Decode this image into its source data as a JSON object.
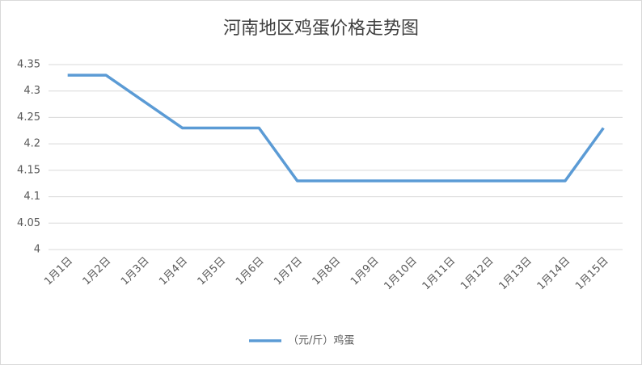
{
  "chart_data": {
    "type": "line",
    "title": "河南地区鸡蛋价格走势图",
    "categories": [
      "1月1日",
      "1月2日",
      "1月3日",
      "1月4日",
      "1月5日",
      "1月6日",
      "1月7日",
      "1月8日",
      "1月9日",
      "1月10日",
      "1月11日",
      "1月12日",
      "1月13日",
      "1月14日",
      "1月15日"
    ],
    "series": [
      {
        "name": "（元/斤）鸡蛋",
        "color": "#5b9bd5",
        "values": [
          4.33,
          4.33,
          4.28,
          4.23,
          4.23,
          4.23,
          4.13,
          4.13,
          4.13,
          4.13,
          4.13,
          4.13,
          4.13,
          4.13,
          4.23
        ]
      }
    ],
    "ylim": [
      4,
      4.35
    ],
    "yticks": [
      4,
      4.05,
      4.1,
      4.15,
      4.2,
      4.25,
      4.3,
      4.35
    ],
    "grid": true,
    "legend": "bottom"
  }
}
